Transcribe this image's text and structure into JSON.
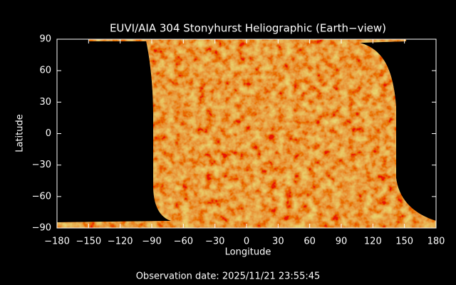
{
  "chart_data": {
    "type": "map",
    "title": "EUVI/AIA 304 Stonyhurst Heliographic (Earth−view)",
    "xlabel": "Longitude",
    "ylabel": "Latitude",
    "footer": "Observation date: 2025/11/21 23:55:45",
    "xlim": [
      -180,
      180
    ],
    "ylim": [
      -90,
      90
    ],
    "xticks": [
      {
        "value": -180,
        "label": "−180"
      },
      {
        "value": -150,
        "label": "−150"
      },
      {
        "value": -120,
        "label": "−120"
      },
      {
        "value": -90,
        "label": "−90"
      },
      {
        "value": -60,
        "label": "−60"
      },
      {
        "value": -30,
        "label": "−30"
      },
      0,
      30,
      60,
      90,
      120,
      150,
      180
    ],
    "yticks": [
      {
        "value": -90,
        "label": "−90"
      },
      {
        "value": -60,
        "label": "−60"
      },
      {
        "value": -30,
        "label": "−30"
      },
      0,
      30,
      60,
      90
    ]
  }
}
